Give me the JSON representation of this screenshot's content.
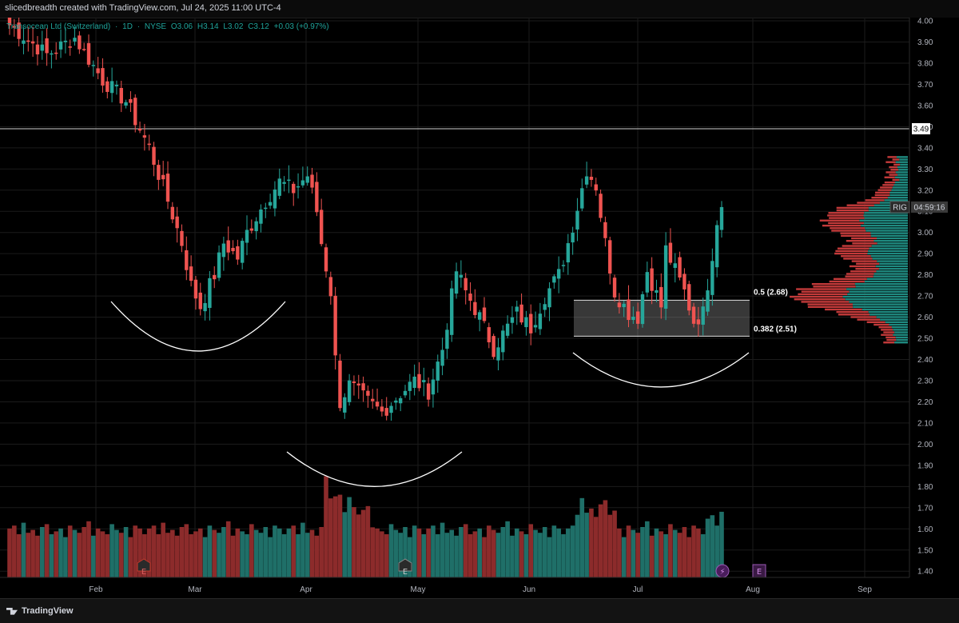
{
  "header": {
    "caption": "slicedbreadth created with TradingView.com, Jul 24, 2025 11:00 UTC-4"
  },
  "legend": {
    "symbol": "Transocean Ltd (Switzerland)",
    "sep1": "·",
    "interval": "1D",
    "sep2": "·",
    "exchange": "NYSE",
    "open": "O3.06",
    "high": "H3.14",
    "low": "L3.02",
    "close": "C3.12",
    "change": "+0.03 (+0.97%)"
  },
  "footer": {
    "brand": "TradingView"
  },
  "colors": {
    "up": "#26a69a",
    "down": "#ef5350",
    "background": "#000000",
    "grid": "#1b1b1b",
    "text": "#d1d4dc"
  },
  "chart_data": {
    "type": "candlestick",
    "ylim": [
      1.35,
      4.0
    ],
    "y_ticks": [
      "4.00",
      "3.90",
      "3.80",
      "3.70",
      "3.60",
      "3.50",
      "3.40",
      "3.30",
      "3.20",
      "3.10",
      "3.00",
      "2.90",
      "2.80",
      "2.70",
      "2.60",
      "2.50",
      "2.40",
      "2.30",
      "2.20",
      "2.10",
      "2.00",
      "1.90",
      "1.80",
      "1.70",
      "1.60",
      "1.50",
      "1.40"
    ],
    "x_ticks": [
      "Feb",
      "Mar",
      "Apr",
      "May",
      "Jun",
      "Jul",
      "Aug",
      "Sep"
    ],
    "horizontal_line": {
      "value": 3.49,
      "label": "3.49"
    },
    "last_price": {
      "symbol": "RIG",
      "countdown": "04:59:16",
      "value": 3.12
    },
    "fib_zone": {
      "upper": 2.68,
      "lower": 2.51,
      "upper_label": "0.5 (2.68)",
      "lower_label": "0.382 (2.51)"
    },
    "annotations": [
      {
        "type": "arc",
        "shape": "cup",
        "from": "late Feb",
        "to": "late Mar",
        "bottom_price": 2.44
      },
      {
        "type": "arc",
        "shape": "cup",
        "from": "early Apr",
        "to": "late Apr",
        "bottom_price": 1.8
      },
      {
        "type": "arc",
        "shape": "cup",
        "from": "mid Jun",
        "to": "late Jul",
        "bottom_price": 2.27
      }
    ],
    "event_markers": [
      {
        "label": "E",
        "period": "mid Feb",
        "state": "past"
      },
      {
        "label": "E",
        "period": "late Apr",
        "state": "past"
      },
      {
        "label": "⚡",
        "period": "late Jul",
        "state": "upcoming"
      },
      {
        "label": "E",
        "period": "late Jul",
        "state": "upcoming"
      }
    ],
    "price_anchors": [
      [
        0,
        3.98
      ],
      [
        8,
        3.84
      ],
      [
        14,
        3.92
      ],
      [
        20,
        3.72
      ],
      [
        25,
        3.62
      ],
      [
        30,
        3.4
      ],
      [
        34,
        3.15
      ],
      [
        37,
        2.95
      ],
      [
        39,
        2.75
      ],
      [
        41,
        2.65
      ],
      [
        44,
        2.8
      ],
      [
        46,
        2.95
      ],
      [
        49,
        2.88
      ],
      [
        51,
        3.0
      ],
      [
        55,
        3.15
      ],
      [
        58,
        3.24
      ],
      [
        61,
        3.2
      ],
      [
        64,
        3.27
      ],
      [
        66,
        3.1
      ],
      [
        67,
        2.95
      ],
      [
        69,
        2.72
      ],
      [
        70,
        2.4
      ],
      [
        71,
        2.2
      ],
      [
        73,
        2.28
      ],
      [
        77,
        2.2
      ],
      [
        80,
        2.15
      ],
      [
        84,
        2.24
      ],
      [
        87,
        2.3
      ],
      [
        90,
        2.25
      ],
      [
        93,
        2.45
      ],
      [
        96,
        2.82
      ],
      [
        98,
        2.72
      ],
      [
        101,
        2.6
      ],
      [
        104,
        2.45
      ],
      [
        106,
        2.52
      ],
      [
        109,
        2.62
      ],
      [
        112,
        2.55
      ],
      [
        115,
        2.7
      ],
      [
        118,
        2.8
      ],
      [
        120,
        2.95
      ],
      [
        122,
        3.12
      ],
      [
        124,
        3.3
      ],
      [
        126,
        3.22
      ],
      [
        128,
        2.95
      ],
      [
        130,
        2.72
      ],
      [
        133,
        2.62
      ],
      [
        135,
        2.6
      ],
      [
        137,
        2.82
      ],
      [
        140,
        2.65
      ],
      [
        141,
        2.92
      ],
      [
        143,
        2.82
      ],
      [
        145,
        2.72
      ],
      [
        147,
        2.58
      ],
      [
        149,
        2.62
      ],
      [
        151,
        2.9
      ],
      [
        152,
        3.06
      ],
      [
        153,
        3.12
      ]
    ],
    "volume_pattern": [
      0.34,
      0.36,
      0.3,
      0.38,
      0.31,
      0.33,
      0.29,
      0.35,
      0.37,
      0.3,
      0.32,
      0.34,
      0.28,
      0.36,
      0.33,
      0.31,
      0.35,
      0.39,
      0.29,
      0.34,
      0.32,
      0.3,
      0.37,
      0.33,
      0.31,
      0.35,
      0.28,
      0.36,
      0.34,
      0.3
    ]
  }
}
